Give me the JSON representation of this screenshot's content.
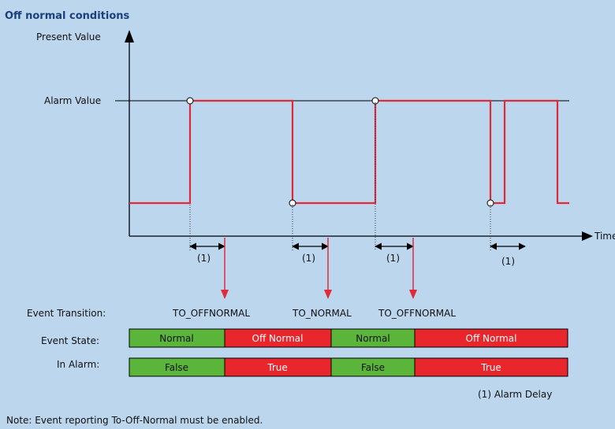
{
  "title": "Off normal conditions",
  "axes": {
    "y_label": "Present Value",
    "x_label": "Time",
    "alarm_label": "Alarm Value"
  },
  "delay_marker": "(1)",
  "row_labels": {
    "transition": "Event Transition:",
    "state": "Event State:",
    "alarm": "In Alarm:"
  },
  "transitions": [
    "TO_OFFNORMAL",
    "TO_NORMAL",
    "TO_OFFNORMAL"
  ],
  "event_state": [
    {
      "label": "Normal",
      "color": "#5ab53a"
    },
    {
      "label": "Off Normal",
      "color": "#e8262b"
    },
    {
      "label": "Normal",
      "color": "#5ab53a"
    },
    {
      "label": "Off Normal",
      "color": "#e8262b"
    }
  ],
  "in_alarm": [
    {
      "label": "False",
      "color": "#5ab53a"
    },
    {
      "label": "True",
      "color": "#e8262b"
    },
    {
      "label": "False",
      "color": "#5ab53a"
    },
    {
      "label": "True",
      "color": "#e8262b"
    }
  ],
  "legend": "(1) Alarm Delay",
  "note": "Note: Event reporting To-Off-Normal must be enabled.",
  "colors": {
    "background": "#bcd6ee",
    "signal": "#e02a3a",
    "normal": "#5ab53a",
    "offnormal": "#e8262b",
    "title": "#1b3f7a"
  }
}
